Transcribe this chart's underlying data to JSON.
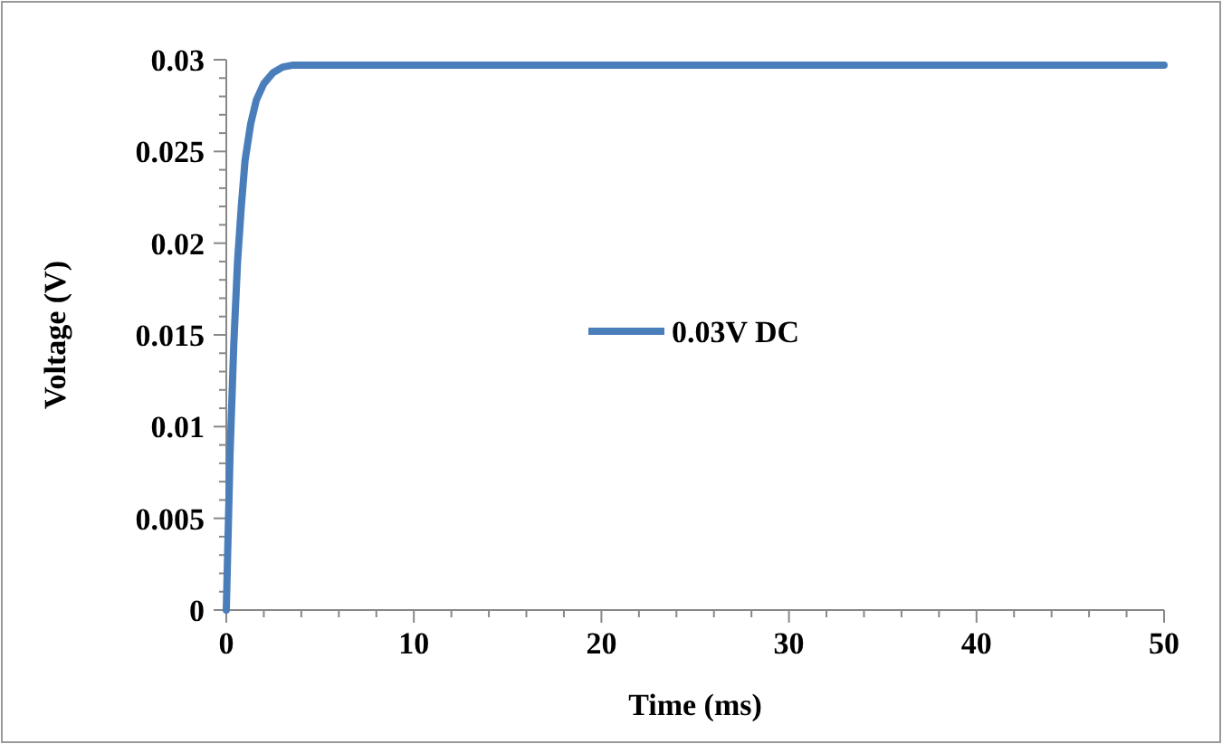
{
  "chart_data": {
    "type": "line",
    "xlabel": "Time (ms)",
    "ylabel": "Voltage (V)",
    "xlim": [
      0,
      50
    ],
    "xticks": [
      0,
      10,
      20,
      30,
      40,
      50
    ],
    "ylim": [
      0,
      0.03
    ],
    "yticks": [
      0,
      0.005,
      0.01,
      0.015,
      0.02,
      0.025,
      0.03
    ],
    "x": [
      0,
      0.2,
      0.4,
      0.6,
      0.8,
      1.0,
      1.3,
      1.6,
      2,
      2.5,
      3,
      3.5,
      50
    ],
    "series": [
      {
        "name": "0.03V DC",
        "color": "#4a7ebb",
        "values": [
          0,
          0.0085,
          0.0145,
          0.019,
          0.022,
          0.0245,
          0.0265,
          0.0278,
          0.0287,
          0.0293,
          0.0296,
          0.0297,
          0.0297
        ]
      }
    ],
    "legend": "center",
    "grid": false,
    "marker": "none",
    "line_style": "solid"
  }
}
